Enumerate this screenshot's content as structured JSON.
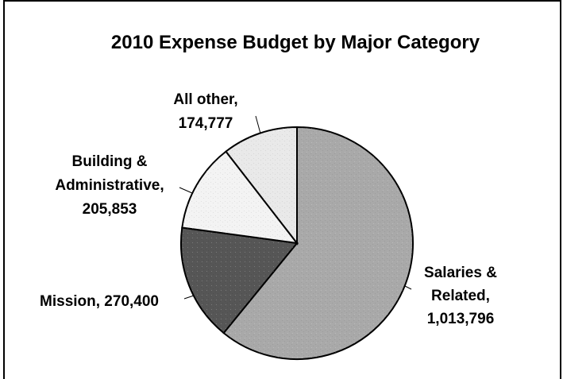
{
  "chart_data": {
    "type": "pie",
    "title": "2010 Expense Budget by Major Category",
    "slices": [
      {
        "label_lines": [
          "Salaries &",
          "Related,",
          "1,013,796"
        ],
        "value": 1013796,
        "color": "#a9a9a9"
      },
      {
        "label_lines": [
          "Mission, 270,400"
        ],
        "value": 270400,
        "color": "#565656"
      },
      {
        "label_lines": [
          "Building &",
          "Administrative,",
          "205,853"
        ],
        "value": 205853,
        "color": "#f3f3f3"
      },
      {
        "label_lines": [
          "All other,",
          "174,777"
        ],
        "value": 174777,
        "color": "#e9e9e9"
      }
    ],
    "start_angle": "12 o'clock",
    "direction": "clockwise",
    "legend": "none"
  }
}
